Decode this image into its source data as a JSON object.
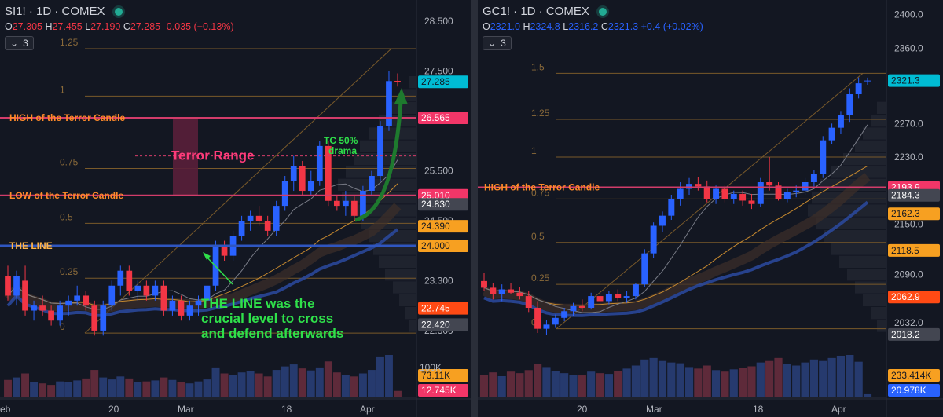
{
  "left": {
    "title": "SI1! · 1D · COMEX",
    "ohlc": {
      "o": "27.305",
      "h": "27.455",
      "l": "27.190",
      "c": "27.285",
      "chg": "-0.035 (−0.13%)"
    },
    "indicator_count": "3",
    "price_axis": [
      "28.500",
      "27.500",
      "25.500",
      "24.500",
      "23.300",
      "22.300"
    ],
    "price_badges": [
      {
        "label": "27.285",
        "price": 27.285,
        "color": "#00bcd4"
      },
      {
        "label": "26.565",
        "price": 26.565,
        "color": "#f23668"
      },
      {
        "label": "25.010",
        "price": 25.01,
        "color": "#f23668"
      },
      {
        "label": "24.830",
        "price": 24.83,
        "color": "#434651"
      },
      {
        "label": "24.390",
        "price": 24.39,
        "color": "#f7a021"
      },
      {
        "label": "24.000",
        "price": 24.0,
        "color": "#f7a021"
      },
      {
        "label": "22.745",
        "price": 22.745,
        "color": "#ff4a14"
      },
      {
        "label": "22.420",
        "price": 22.42,
        "color": "#434651"
      }
    ],
    "vol_badges": [
      {
        "label": "73.11K",
        "color": "#f7a021"
      },
      {
        "label": "12.745K",
        "color": "#f23668"
      }
    ],
    "vol_axis": "100K",
    "time_axis": [
      "eb",
      "20",
      "Mar",
      "18",
      "Apr"
    ],
    "annotations": {
      "high_label": "HIGH of the Terror Candle",
      "low_label": "LOW of the Terror Candle",
      "the_line_label": "THE LINE",
      "terror_range": "Terror Range",
      "tc_50": "TC 50%",
      "tc_drama": "drama",
      "line_note_1": "THE LINE was the",
      "line_note_2": "crucial level to cross",
      "line_note_3": "and defend afterwards"
    },
    "fib_labels": [
      "1.25",
      "1",
      "0.75",
      "0.5",
      "0.25",
      "0"
    ]
  },
  "right": {
    "title": "GC1! · 1D · COMEX",
    "ohlc": {
      "o": "2321.0",
      "h": "2324.8",
      "l": "2316.2",
      "c": "2321.3",
      "chg": "+0.4 (+0.02%)"
    },
    "indicator_count": "3",
    "price_axis": [
      "2400.0",
      "2360.0",
      "2270.0",
      "2230.0",
      "2150.0",
      "2090.0",
      "2032.0"
    ],
    "price_badges": [
      {
        "label": "2321.3",
        "price": 2321.3,
        "color": "#00bcd4"
      },
      {
        "label": "2193.9",
        "price": 2193.9,
        "color": "#f23668"
      },
      {
        "label": "2184.3",
        "price": 2184.3,
        "color": "#434651"
      },
      {
        "label": "2162.3",
        "price": 2162.3,
        "color": "#f7a021"
      },
      {
        "label": "2118.5",
        "price": 2118.5,
        "color": "#f7a021"
      },
      {
        "label": "2062.9",
        "price": 2062.9,
        "color": "#ff4a14"
      },
      {
        "label": "2018.2",
        "price": 2018.2,
        "color": "#434651"
      }
    ],
    "vol_badges": [
      {
        "label": "233.414K",
        "color": "#f7a021"
      },
      {
        "label": "20.978K",
        "color": "#2962ff"
      }
    ],
    "time_axis": [
      "20",
      "Mar",
      "18",
      "Apr"
    ],
    "annotations": {
      "high_label": "HIGH of the Terror Candle"
    },
    "fib_labels": [
      "1.5",
      "1.25",
      "1",
      "0.75",
      "0.5",
      "0.25",
      "0"
    ]
  },
  "chart_data": [
    {
      "type": "candlestick",
      "title": "SI1! · 1D · COMEX",
      "ylim": [
        22.0,
        28.8
      ],
      "levels": {
        "high_terror": 26.565,
        "low_terror": 25.01,
        "the_line": 24.0,
        "terror_mid": 25.8
      },
      "fib": [
        {
          "level": "1.25",
          "price": 27.95
        },
        {
          "level": "1",
          "price": 27.0
        },
        {
          "level": "0.75",
          "price": 25.55
        },
        {
          "level": "0.5",
          "price": 24.45
        },
        {
          "level": "0.25",
          "price": 23.35
        },
        {
          "level": "0",
          "price": 22.25
        }
      ],
      "candles": [
        {
          "o": 23.4,
          "h": 23.6,
          "l": 22.9,
          "c": 23.0
        },
        {
          "o": 23.0,
          "h": 23.5,
          "l": 22.8,
          "c": 23.4
        },
        {
          "o": 23.3,
          "h": 23.6,
          "l": 22.6,
          "c": 22.7
        },
        {
          "o": 22.7,
          "h": 22.9,
          "l": 22.5,
          "c": 22.8
        },
        {
          "o": 22.8,
          "h": 23.0,
          "l": 22.6,
          "c": 22.7
        },
        {
          "o": 22.7,
          "h": 22.8,
          "l": 22.4,
          "c": 22.5
        },
        {
          "o": 22.5,
          "h": 22.9,
          "l": 22.4,
          "c": 22.8
        },
        {
          "o": 22.8,
          "h": 23.0,
          "l": 22.6,
          "c": 22.9
        },
        {
          "o": 22.9,
          "h": 23.2,
          "l": 22.8,
          "c": 23.0
        },
        {
          "o": 23.0,
          "h": 23.1,
          "l": 22.7,
          "c": 22.8
        },
        {
          "o": 22.8,
          "h": 22.9,
          "l": 22.2,
          "c": 22.3
        },
        {
          "o": 22.3,
          "h": 22.9,
          "l": 22.2,
          "c": 22.8
        },
        {
          "o": 22.8,
          "h": 23.3,
          "l": 22.7,
          "c": 23.2
        },
        {
          "o": 23.2,
          "h": 23.6,
          "l": 23.0,
          "c": 23.5
        },
        {
          "o": 23.5,
          "h": 23.6,
          "l": 23.0,
          "c": 23.1
        },
        {
          "o": 23.1,
          "h": 23.3,
          "l": 22.9,
          "c": 23.2
        },
        {
          "o": 23.2,
          "h": 23.3,
          "l": 22.9,
          "c": 23.0
        },
        {
          "o": 23.0,
          "h": 23.3,
          "l": 22.9,
          "c": 23.2
        },
        {
          "o": 23.2,
          "h": 23.3,
          "l": 22.6,
          "c": 22.7
        },
        {
          "o": 22.7,
          "h": 23.0,
          "l": 22.6,
          "c": 22.9
        },
        {
          "o": 22.9,
          "h": 23.0,
          "l": 22.5,
          "c": 22.6
        },
        {
          "o": 22.6,
          "h": 22.9,
          "l": 22.5,
          "c": 22.8
        },
        {
          "o": 22.8,
          "h": 23.0,
          "l": 22.6,
          "c": 22.9
        },
        {
          "o": 22.9,
          "h": 23.3,
          "l": 22.8,
          "c": 23.2
        },
        {
          "o": 23.2,
          "h": 24.1,
          "l": 23.1,
          "c": 24.0
        },
        {
          "o": 24.0,
          "h": 24.1,
          "l": 23.7,
          "c": 23.8
        },
        {
          "o": 23.8,
          "h": 24.3,
          "l": 23.7,
          "c": 24.2
        },
        {
          "o": 24.2,
          "h": 24.6,
          "l": 24.1,
          "c": 24.5
        },
        {
          "o": 24.5,
          "h": 24.7,
          "l": 24.3,
          "c": 24.6
        },
        {
          "o": 24.6,
          "h": 24.8,
          "l": 24.4,
          "c": 24.5
        },
        {
          "o": 24.5,
          "h": 24.6,
          "l": 24.2,
          "c": 24.3
        },
        {
          "o": 24.3,
          "h": 24.9,
          "l": 24.2,
          "c": 24.8
        },
        {
          "o": 24.8,
          "h": 25.4,
          "l": 24.7,
          "c": 25.3
        },
        {
          "o": 25.3,
          "h": 25.8,
          "l": 25.1,
          "c": 25.6
        },
        {
          "o": 25.6,
          "h": 25.7,
          "l": 25.0,
          "c": 25.1
        },
        {
          "o": 25.1,
          "h": 25.5,
          "l": 25.0,
          "c": 25.3
        },
        {
          "o": 25.3,
          "h": 26.1,
          "l": 25.2,
          "c": 26.0
        },
        {
          "o": 26.0,
          "h": 26.1,
          "l": 24.8,
          "c": 24.9
        },
        {
          "o": 24.9,
          "h": 25.0,
          "l": 24.7,
          "c": 24.8
        },
        {
          "o": 24.8,
          "h": 25.1,
          "l": 24.6,
          "c": 24.9
        },
        {
          "o": 24.9,
          "h": 25.0,
          "l": 24.5,
          "c": 24.6
        },
        {
          "o": 24.6,
          "h": 25.2,
          "l": 24.5,
          "c": 25.1
        },
        {
          "o": 25.1,
          "h": 25.5,
          "l": 25.0,
          "c": 25.4
        },
        {
          "o": 25.4,
          "h": 26.5,
          "l": 25.3,
          "c": 26.4
        },
        {
          "o": 26.4,
          "h": 27.5,
          "l": 26.3,
          "c": 27.3
        },
        {
          "o": 27.305,
          "h": 27.455,
          "l": 27.19,
          "c": 27.285
        }
      ],
      "volume": [
        35,
        40,
        48,
        30,
        28,
        25,
        32,
        30,
        34,
        38,
        55,
        40,
        36,
        42,
        38,
        30,
        32,
        34,
        40,
        35,
        30,
        28,
        32,
        36,
        60,
        48,
        45,
        50,
        52,
        48,
        42,
        55,
        62,
        66,
        58,
        54,
        60,
        72,
        50,
        45,
        42,
        48,
        55,
        82,
        85,
        13
      ]
    },
    {
      "type": "candlestick",
      "title": "GC1! · 1D · COMEX",
      "ylim": [
        2005,
        2410
      ],
      "levels": {
        "high_terror": 2193.9
      },
      "fib": [
        {
          "level": "1.5",
          "price": 2330
        },
        {
          "level": "1.25",
          "price": 2275
        },
        {
          "level": "1",
          "price": 2230
        },
        {
          "level": "0.75",
          "price": 2180
        },
        {
          "level": "0.5",
          "price": 2128
        },
        {
          "level": "0.25",
          "price": 2078
        },
        {
          "level": "0",
          "price": 2025
        }
      ],
      "candles": [
        {
          "o": 2082,
          "h": 2092,
          "l": 2070,
          "c": 2074
        },
        {
          "o": 2074,
          "h": 2080,
          "l": 2060,
          "c": 2066
        },
        {
          "o": 2066,
          "h": 2078,
          "l": 2058,
          "c": 2072
        },
        {
          "o": 2072,
          "h": 2080,
          "l": 2066,
          "c": 2068
        },
        {
          "o": 2068,
          "h": 2075,
          "l": 2060,
          "c": 2064
        },
        {
          "o": 2064,
          "h": 2070,
          "l": 2045,
          "c": 2050
        },
        {
          "o": 2050,
          "h": 2058,
          "l": 2020,
          "c": 2025
        },
        {
          "o": 2025,
          "h": 2035,
          "l": 2018,
          "c": 2030
        },
        {
          "o": 2030,
          "h": 2042,
          "l": 2026,
          "c": 2038
        },
        {
          "o": 2038,
          "h": 2050,
          "l": 2034,
          "c": 2046
        },
        {
          "o": 2046,
          "h": 2056,
          "l": 2040,
          "c": 2052
        },
        {
          "o": 2052,
          "h": 2060,
          "l": 2046,
          "c": 2050
        },
        {
          "o": 2050,
          "h": 2068,
          "l": 2048,
          "c": 2064
        },
        {
          "o": 2064,
          "h": 2070,
          "l": 2054,
          "c": 2058
        },
        {
          "o": 2058,
          "h": 2070,
          "l": 2054,
          "c": 2066
        },
        {
          "o": 2066,
          "h": 2072,
          "l": 2058,
          "c": 2062
        },
        {
          "o": 2062,
          "h": 2070,
          "l": 2056,
          "c": 2064
        },
        {
          "o": 2064,
          "h": 2080,
          "l": 2060,
          "c": 2078
        },
        {
          "o": 2078,
          "h": 2120,
          "l": 2075,
          "c": 2115
        },
        {
          "o": 2115,
          "h": 2152,
          "l": 2110,
          "c": 2148
        },
        {
          "o": 2148,
          "h": 2165,
          "l": 2140,
          "c": 2160
        },
        {
          "o": 2160,
          "h": 2185,
          "l": 2155,
          "c": 2180
        },
        {
          "o": 2180,
          "h": 2200,
          "l": 2172,
          "c": 2192
        },
        {
          "o": 2192,
          "h": 2205,
          "l": 2185,
          "c": 2198
        },
        {
          "o": 2198,
          "h": 2206,
          "l": 2190,
          "c": 2195
        },
        {
          "o": 2195,
          "h": 2202,
          "l": 2176,
          "c": 2180
        },
        {
          "o": 2180,
          "h": 2196,
          "l": 2174,
          "c": 2192
        },
        {
          "o": 2192,
          "h": 2196,
          "l": 2176,
          "c": 2180
        },
        {
          "o": 2180,
          "h": 2190,
          "l": 2174,
          "c": 2186
        },
        {
          "o": 2186,
          "h": 2190,
          "l": 2172,
          "c": 2178
        },
        {
          "o": 2178,
          "h": 2186,
          "l": 2168,
          "c": 2174
        },
        {
          "o": 2174,
          "h": 2205,
          "l": 2170,
          "c": 2200
        },
        {
          "o": 2200,
          "h": 2230,
          "l": 2190,
          "c": 2196
        },
        {
          "o": 2196,
          "h": 2200,
          "l": 2178,
          "c": 2180
        },
        {
          "o": 2180,
          "h": 2192,
          "l": 2176,
          "c": 2188
        },
        {
          "o": 2188,
          "h": 2196,
          "l": 2182,
          "c": 2190
        },
        {
          "o": 2190,
          "h": 2205,
          "l": 2185,
          "c": 2200
        },
        {
          "o": 2200,
          "h": 2215,
          "l": 2195,
          "c": 2210
        },
        {
          "o": 2210,
          "h": 2255,
          "l": 2205,
          "c": 2250
        },
        {
          "o": 2250,
          "h": 2270,
          "l": 2245,
          "c": 2265
        },
        {
          "o": 2265,
          "h": 2285,
          "l": 2258,
          "c": 2280
        },
        {
          "o": 2280,
          "h": 2312,
          "l": 2272,
          "c": 2305
        },
        {
          "o": 2305,
          "h": 2325,
          "l": 2300,
          "c": 2318
        },
        {
          "o": 2321.0,
          "h": 2324.8,
          "l": 2316.2,
          "c": 2321.3
        }
      ],
      "volume": [
        150,
        165,
        140,
        170,
        160,
        180,
        220,
        200,
        175,
        160,
        150,
        145,
        170,
        160,
        155,
        175,
        190,
        210,
        250,
        260,
        240,
        230,
        225,
        200,
        190,
        210,
        180,
        170,
        185,
        195,
        205,
        230,
        240,
        260,
        220,
        210,
        230,
        250,
        240,
        260,
        275,
        280,
        235,
        21
      ]
    }
  ]
}
